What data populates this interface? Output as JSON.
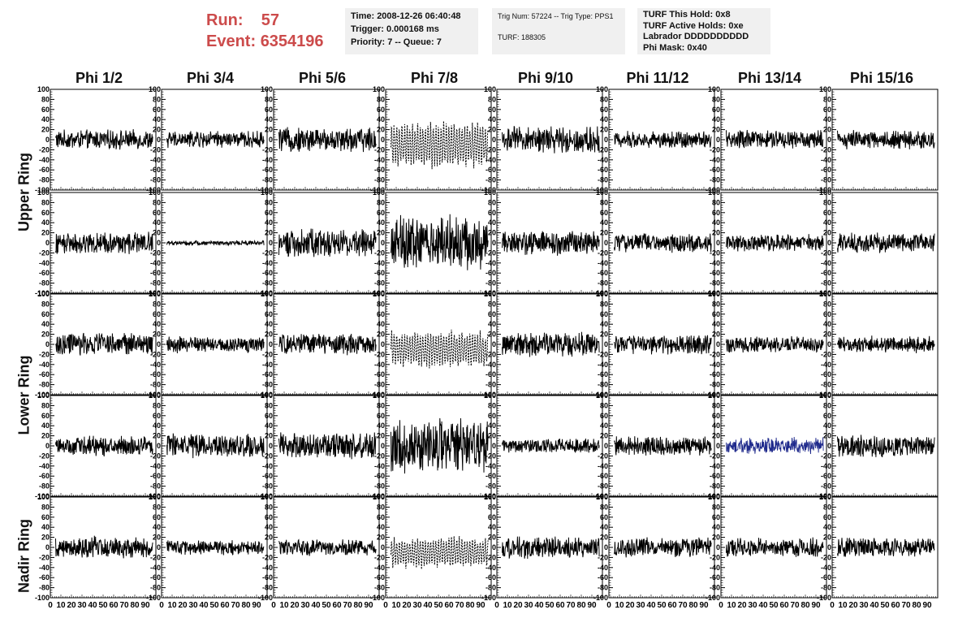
{
  "header": {
    "run_label": "Run:",
    "run_value": "57",
    "event_label": "Event:",
    "event_value": "6354196"
  },
  "info_time": {
    "time": "Time: 2008-12-26 06:40:48",
    "trigger": "Trigger: 0.000168 ms",
    "priority": "Priority: 7 -- Queue: 7"
  },
  "info_trig": {
    "trig": "Trig Num: 57224 -- Trig Type: PPS1",
    "turf": "TURF: 188305"
  },
  "info_turf": {
    "hold": "TURF This Hold: 0x8",
    "active": "TURF Active Holds: 0xe",
    "labrador": "Labrador DDDDDDDDDD",
    "mask": "Phi Mask: 0x40"
  },
  "phi_columns": [
    "Phi 1/2",
    "Phi 3/4",
    "Phi 5/6",
    "Phi 7/8",
    "Phi 9/10",
    "Phi 11/12",
    "Phi 13/14",
    "Phi 15/16"
  ],
  "rings": [
    "Upper Ring",
    "Lower Ring",
    "Nadir Ring"
  ],
  "colors": {
    "trace": "#000000",
    "highlight": "#1f2a8c",
    "run_text": "#cc4b4b",
    "info_bg": "#f0f0f0"
  },
  "chart_data": {
    "type": "line",
    "rows": 5,
    "cols": 8,
    "xlim": [
      0,
      100
    ],
    "ylim": [
      -100,
      100
    ],
    "x_ticks": [
      0,
      10,
      20,
      30,
      40,
      50,
      60,
      70,
      80,
      90
    ],
    "x_tick_labels": [
      "0",
      "10",
      "20",
      "30",
      "40",
      "50",
      "60",
      "70",
      "80",
      "90"
    ],
    "y_ticks": [
      100,
      80,
      60,
      40,
      20,
      0,
      -20,
      -40,
      -60,
      -80,
      -100
    ],
    "y_tick_labels": [
      "100",
      "80",
      "60",
      "40",
      "20",
      "0",
      "-20",
      "-40",
      "-60",
      "-80",
      "-100"
    ],
    "panels": [
      {
        "row": 0,
        "col": 0,
        "amp": 16,
        "dashed": false,
        "highlight": false
      },
      {
        "row": 0,
        "col": 1,
        "amp": 14,
        "dashed": false,
        "highlight": false
      },
      {
        "row": 0,
        "col": 2,
        "amp": 20,
        "dashed": false,
        "highlight": false
      },
      {
        "row": 0,
        "col": 3,
        "amp": 45,
        "dashed": true,
        "highlight": false
      },
      {
        "row": 0,
        "col": 4,
        "amp": 22,
        "dashed": false,
        "highlight": false
      },
      {
        "row": 0,
        "col": 5,
        "amp": 14,
        "dashed": false,
        "highlight": false
      },
      {
        "row": 0,
        "col": 6,
        "amp": 16,
        "dashed": false,
        "highlight": false
      },
      {
        "row": 0,
        "col": 7,
        "amp": 16,
        "dashed": false,
        "highlight": false
      },
      {
        "row": 1,
        "col": 0,
        "amp": 18,
        "dashed": false,
        "highlight": false
      },
      {
        "row": 1,
        "col": 1,
        "amp": 4,
        "dashed": false,
        "highlight": false
      },
      {
        "row": 1,
        "col": 2,
        "amp": 24,
        "dashed": false,
        "highlight": false
      },
      {
        "row": 1,
        "col": 3,
        "amp": 45,
        "dashed": false,
        "highlight": false
      },
      {
        "row": 1,
        "col": 4,
        "amp": 20,
        "dashed": false,
        "highlight": false
      },
      {
        "row": 1,
        "col": 5,
        "amp": 16,
        "dashed": false,
        "highlight": false
      },
      {
        "row": 1,
        "col": 6,
        "amp": 14,
        "dashed": false,
        "highlight": false
      },
      {
        "row": 1,
        "col": 7,
        "amp": 16,
        "dashed": false,
        "highlight": false
      },
      {
        "row": 2,
        "col": 0,
        "amp": 18,
        "dashed": false,
        "highlight": false
      },
      {
        "row": 2,
        "col": 1,
        "amp": 14,
        "dashed": false,
        "highlight": false
      },
      {
        "row": 2,
        "col": 2,
        "amp": 18,
        "dashed": false,
        "highlight": false
      },
      {
        "row": 2,
        "col": 3,
        "amp": 36,
        "dashed": true,
        "highlight": false
      },
      {
        "row": 2,
        "col": 4,
        "amp": 20,
        "dashed": false,
        "highlight": false
      },
      {
        "row": 2,
        "col": 5,
        "amp": 16,
        "dashed": false,
        "highlight": false
      },
      {
        "row": 2,
        "col": 6,
        "amp": 14,
        "dashed": false,
        "highlight": false
      },
      {
        "row": 2,
        "col": 7,
        "amp": 14,
        "dashed": false,
        "highlight": false
      },
      {
        "row": 3,
        "col": 0,
        "amp": 16,
        "dashed": false,
        "highlight": false
      },
      {
        "row": 3,
        "col": 1,
        "amp": 20,
        "dashed": false,
        "highlight": false
      },
      {
        "row": 3,
        "col": 2,
        "amp": 22,
        "dashed": false,
        "highlight": false
      },
      {
        "row": 3,
        "col": 3,
        "amp": 45,
        "dashed": false,
        "highlight": false
      },
      {
        "row": 3,
        "col": 4,
        "amp": 12,
        "dashed": false,
        "highlight": false
      },
      {
        "row": 3,
        "col": 5,
        "amp": 16,
        "dashed": false,
        "highlight": false
      },
      {
        "row": 3,
        "col": 6,
        "amp": 14,
        "dashed": false,
        "highlight": true
      },
      {
        "row": 3,
        "col": 7,
        "amp": 18,
        "dashed": false,
        "highlight": false
      },
      {
        "row": 4,
        "col": 0,
        "amp": 18,
        "dashed": false,
        "highlight": false
      },
      {
        "row": 4,
        "col": 1,
        "amp": 12,
        "dashed": false,
        "highlight": false
      },
      {
        "row": 4,
        "col": 2,
        "amp": 14,
        "dashed": false,
        "highlight": false
      },
      {
        "row": 4,
        "col": 3,
        "amp": 30,
        "dashed": true,
        "highlight": false
      },
      {
        "row": 4,
        "col": 4,
        "amp": 18,
        "dashed": false,
        "highlight": false
      },
      {
        "row": 4,
        "col": 5,
        "amp": 16,
        "dashed": false,
        "highlight": false
      },
      {
        "row": 4,
        "col": 6,
        "amp": 16,
        "dashed": false,
        "highlight": false
      },
      {
        "row": 4,
        "col": 7,
        "amp": 16,
        "dashed": false,
        "highlight": false
      }
    ]
  }
}
